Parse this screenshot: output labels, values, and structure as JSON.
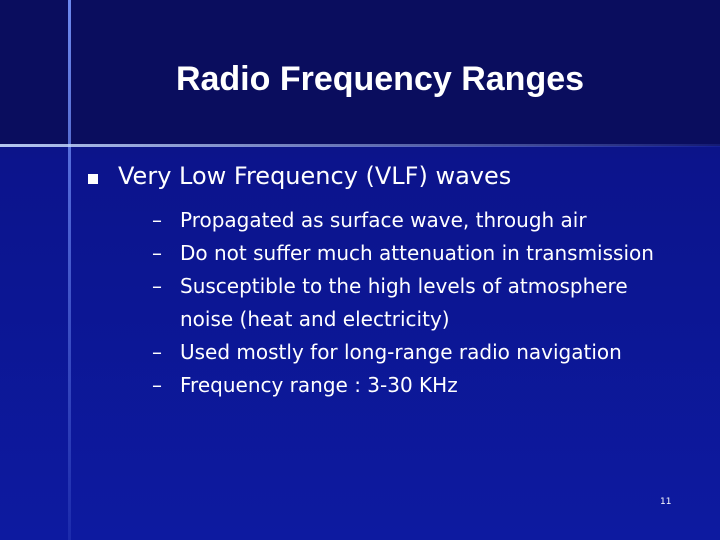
{
  "title": "Radio Frequency Ranges",
  "bullets": [
    {
      "text": "Very Low Frequency (VLF) waves",
      "subitems": [
        "Propagated as surface wave, through air",
        "Do not suffer much attenuation in transmission",
        "Susceptible to the high levels of atmosphere noise (heat and electricity)",
        "Used mostly for long-range radio navigation",
        "Frequency range : 3-30 KHz"
      ]
    }
  ],
  "page_number": "11"
}
